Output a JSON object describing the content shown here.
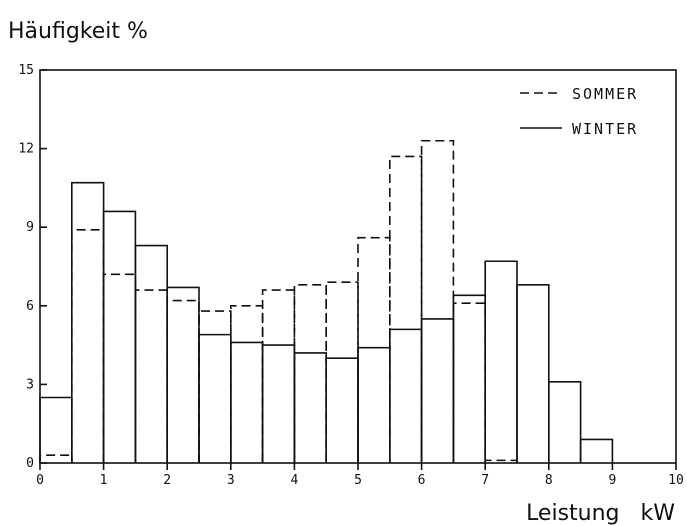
{
  "chart_data": {
    "type": "bar",
    "title": "Häufigkeit %",
    "xlabel": "Leistung   kW",
    "ylabel": "",
    "xlim": [
      0,
      10
    ],
    "ylim": [
      0,
      15
    ],
    "x_ticks": [
      0,
      1,
      2,
      3,
      4,
      5,
      6,
      7,
      8,
      9,
      10
    ],
    "x_tick_labels": [
      "0",
      "1",
      "2",
      "3",
      "4",
      "5",
      "6",
      "7",
      "8",
      "9",
      "10"
    ],
    "y_ticks": [
      0,
      3,
      6,
      9,
      12,
      15
    ],
    "y_tick_labels": [
      "0",
      "3",
      "6",
      "9",
      "12",
      "15"
    ],
    "bin_edges": [
      0,
      0.5,
      1,
      1.5,
      2,
      2.5,
      3,
      3.5,
      4,
      4.5,
      5,
      5.5,
      6,
      6.5,
      7,
      7.5,
      8,
      8.5,
      9,
      9.5,
      10
    ],
    "series": [
      {
        "name": "SOMMER",
        "style": "dashed",
        "values": [
          0.3,
          8.9,
          7.2,
          6.6,
          6.2,
          5.8,
          6.0,
          6.6,
          6.8,
          6.9,
          8.6,
          11.7,
          12.3,
          6.1,
          0.1,
          0,
          0,
          0,
          0,
          0
        ]
      },
      {
        "name": "WINTER",
        "style": "solid",
        "values": [
          2.5,
          10.7,
          9.6,
          8.3,
          6.7,
          4.9,
          4.6,
          4.5,
          4.2,
          4.0,
          4.4,
          5.1,
          5.5,
          6.4,
          7.7,
          6.8,
          3.1,
          0.9,
          0,
          0
        ]
      }
    ],
    "legend": {
      "position": "top-right"
    },
    "grid": false,
    "colors": {
      "line": "#111111",
      "background": "#ffffff"
    }
  }
}
